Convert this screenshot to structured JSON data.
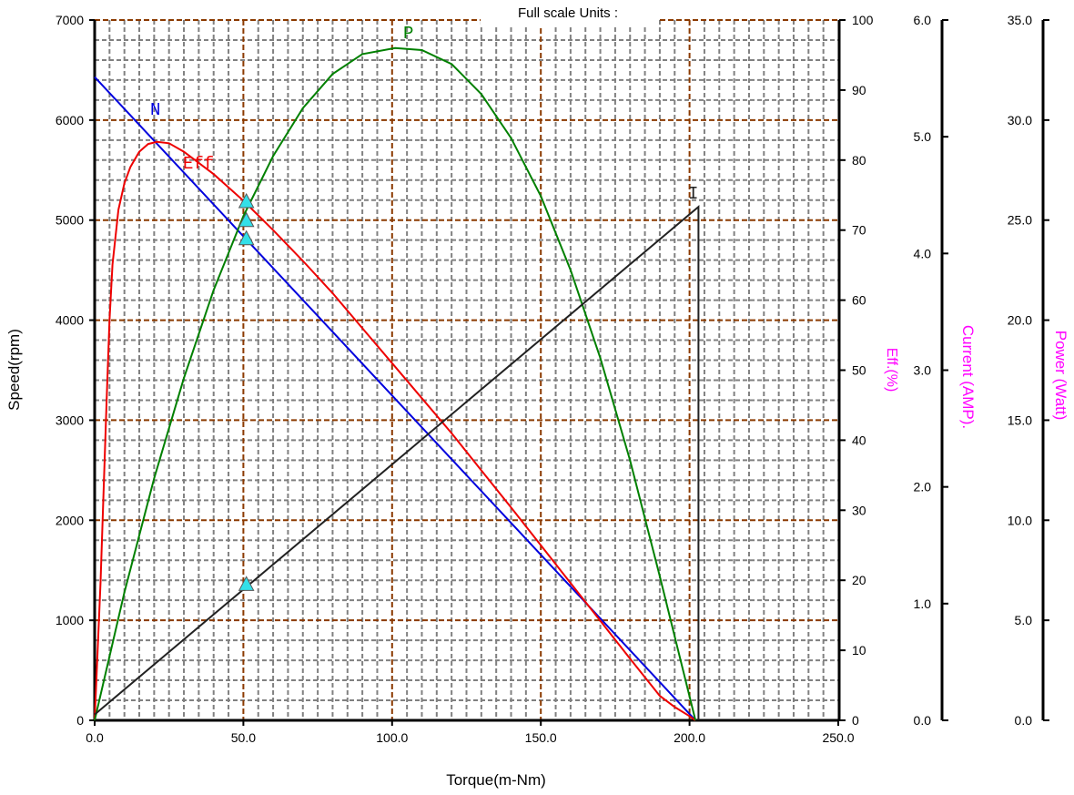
{
  "chart_data": {
    "type": "line",
    "header": "Full scale  Units :",
    "xlabel": "Torque(m-Nm)",
    "xlim": [
      0,
      250
    ],
    "x_ticks": [
      "0.0",
      "50.0",
      "100.0",
      "150.0",
      "200.0",
      "250.0"
    ],
    "axes": {
      "speed": {
        "label": "Speed(rpm)",
        "range": [
          0,
          7000
        ],
        "ticks": [
          "0",
          "1000",
          "2000",
          "3000",
          "4000",
          "5000",
          "6000",
          "7000"
        ],
        "color": "#000000"
      },
      "eff": {
        "label": "Eff.(%)",
        "range": [
          0,
          100
        ],
        "ticks": [
          "0",
          "10",
          "20",
          "30",
          "40",
          "50",
          "60",
          "70",
          "80",
          "90",
          "100"
        ],
        "color": "#ff00ff"
      },
      "current": {
        "label": "Current (AMP).",
        "range": [
          0,
          6
        ],
        "ticks": [
          "0.0",
          "1.0",
          "2.0",
          "3.0",
          "4.0",
          "5.0",
          "6.0"
        ],
        "color": "#ff00ff"
      },
      "power": {
        "label": "Power (Watt)",
        "range": [
          0,
          35
        ],
        "ticks": [
          "0.0",
          "5.0",
          "10.0",
          "15.0",
          "20.0",
          "25.0",
          "30.0",
          "35.0"
        ],
        "color": "#ff00ff"
      }
    },
    "grid": true,
    "series": [
      {
        "name": "N",
        "axis": "speed",
        "color": "#0000dd",
        "x": [
          0,
          202
        ],
        "y": [
          6430,
          0
        ]
      },
      {
        "name": "Eff",
        "axis": "eff",
        "color": "#ee0000",
        "x": [
          0,
          2,
          4,
          5,
          6,
          8,
          10,
          12,
          15,
          18,
          21,
          25,
          30,
          40,
          50,
          60,
          70,
          80,
          90,
          100,
          110,
          120,
          130,
          140,
          150,
          160,
          170,
          180,
          190,
          195,
          200,
          202
        ],
        "y": [
          0,
          19.8,
          45.5,
          57.1,
          65.1,
          72.9,
          76.7,
          79.0,
          81.2,
          82.3,
          82.6,
          82.4,
          81.2,
          78.0,
          74.2,
          70.0,
          65.6,
          61.0,
          56.0,
          51.0,
          46.0,
          41.0,
          35.7,
          30.4,
          25.0,
          19.6,
          14.2,
          8.8,
          3.5,
          1.9,
          0.6,
          0
        ]
      },
      {
        "name": "P",
        "axis": "power",
        "color": "#008000",
        "x": [
          0,
          10,
          20,
          30,
          40,
          50,
          60,
          70,
          80,
          90,
          101,
          110,
          120,
          130,
          140,
          150,
          160,
          170,
          180,
          190,
          202
        ],
        "y": [
          0,
          6.4,
          12.1,
          17.1,
          21.5,
          25.2,
          28.2,
          30.6,
          32.3,
          33.3,
          33.6,
          33.5,
          32.8,
          31.3,
          29.1,
          26.2,
          22.5,
          18.1,
          13.0,
          7.2,
          0
        ]
      },
      {
        "name": "I",
        "axis": "current",
        "color": "#222222",
        "x": [
          0,
          203
        ],
        "y": [
          0.05,
          4.4
        ]
      }
    ],
    "markers": [
      {
        "x": 51,
        "axis": "eff",
        "y": 74
      },
      {
        "x": 51,
        "axis": "eff",
        "y": 71.3
      },
      {
        "x": 51,
        "axis": "eff",
        "y": 68.7
      },
      {
        "x": 51,
        "axis": "current",
        "y": 1.16
      }
    ],
    "colors": {
      "major_grid": "#8b3a00",
      "minor_grid": "#808080",
      "marker_fill": "#33e0e8"
    }
  }
}
